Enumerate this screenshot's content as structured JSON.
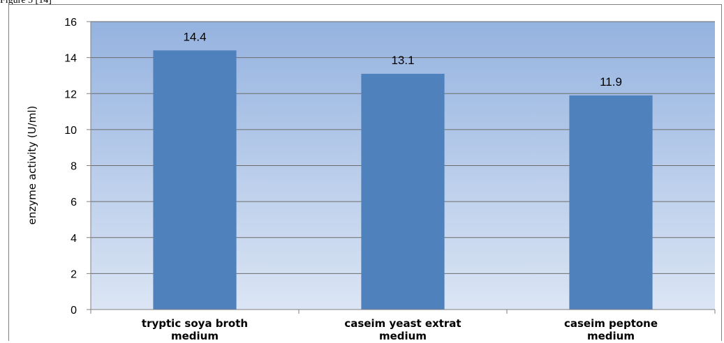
{
  "caption": "Figure 5 [14]",
  "chart_data": {
    "type": "bar",
    "categories": [
      [
        "tryptic soya broth",
        "medium"
      ],
      [
        "caseim yeast extrat",
        "medium"
      ],
      [
        "caseim peptone",
        "medium"
      ]
    ],
    "series": [
      {
        "values": [
          14.4,
          13.1,
          11.9
        ],
        "data_labels": [
          "14.4",
          "13.1",
          "11.9"
        ]
      }
    ],
    "title": "",
    "xlabel": "",
    "ylabel": "enzyme activity (U/ml)",
    "ylim": [
      0,
      16
    ],
    "yticks": [
      0,
      2,
      4,
      6,
      8,
      10,
      12,
      14,
      16
    ],
    "grid": true,
    "legend": "none",
    "colors": {
      "bar": "#4f81bd",
      "plot_gradient_top": "#95b3e0",
      "plot_gradient_bottom": "#dbe5f4",
      "gridline": "#6b6b6b",
      "axis": "#808080"
    }
  }
}
